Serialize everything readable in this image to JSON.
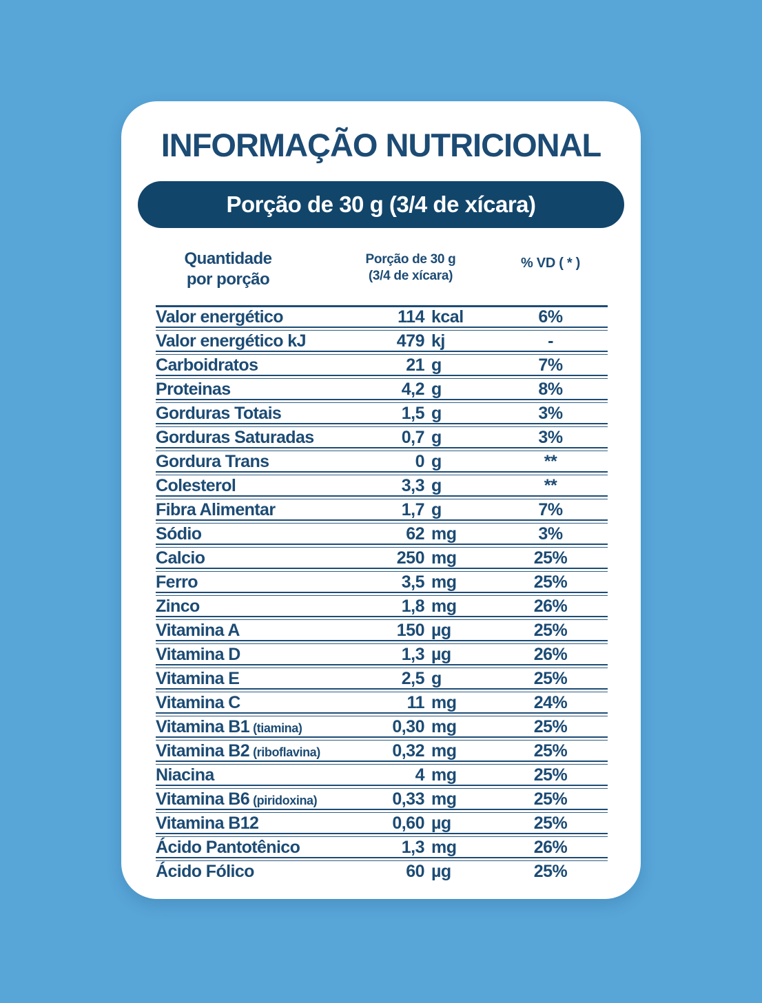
{
  "colors": {
    "background": "#58A5D8",
    "card": "#FFFFFF",
    "navy": "#1C4B74",
    "pill": "#12456A",
    "pill_text": "#FFFFFF"
  },
  "title": "INFORMAÇÃO NUTRICIONAL",
  "serving_banner": "Porção de 30 g (3/4 de xícara)",
  "table": {
    "header": {
      "quantity_line1": "Quantidade",
      "quantity_line2": "por porção",
      "portion_line1": "Porção de 30 g",
      "portion_line2": "(3/4 de xícara)",
      "dv": "% VD ( * )"
    },
    "rows": [
      {
        "label": "Valor energético",
        "sub": "",
        "amount": "114",
        "unit": "kcal",
        "dv": "6%"
      },
      {
        "label": "Valor energético kJ",
        "sub": "",
        "amount": "479",
        "unit": "kj",
        "dv": "-"
      },
      {
        "label": "Carboidratos",
        "sub": "",
        "amount": "21",
        "unit": "g",
        "dv": "7%"
      },
      {
        "label": "Proteinas",
        "sub": "",
        "amount": "4,2",
        "unit": "g",
        "dv": "8%"
      },
      {
        "label": "Gorduras Totais",
        "sub": "",
        "amount": "1,5",
        "unit": "g",
        "dv": "3%"
      },
      {
        "label": "Gorduras Saturadas",
        "sub": "",
        "amount": "0,7",
        "unit": "g",
        "dv": "3%"
      },
      {
        "label": "Gordura Trans",
        "sub": "",
        "amount": "0",
        "unit": "g",
        "dv": "**"
      },
      {
        "label": "Colesterol",
        "sub": "",
        "amount": "3,3",
        "unit": "g",
        "dv": "**"
      },
      {
        "label": "Fibra Alimentar",
        "sub": "",
        "amount": "1,7",
        "unit": "g",
        "dv": "7%"
      },
      {
        "label": "Sódio",
        "sub": "",
        "amount": "62",
        "unit": "mg",
        "dv": "3%"
      },
      {
        "label": "Calcio",
        "sub": "",
        "amount": "250",
        "unit": "mg",
        "dv": "25%"
      },
      {
        "label": "Ferro",
        "sub": "",
        "amount": "3,5",
        "unit": "mg",
        "dv": "25%"
      },
      {
        "label": "Zinco",
        "sub": "",
        "amount": "1,8",
        "unit": "mg",
        "dv": "26%"
      },
      {
        "label": "Vitamina A",
        "sub": "",
        "amount": "150",
        "unit": "µg",
        "dv": "25%"
      },
      {
        "label": "Vitamina D",
        "sub": "",
        "amount": "1,3",
        "unit": "µg",
        "dv": "26%"
      },
      {
        "label": "Vitamina E",
        "sub": "",
        "amount": "2,5",
        "unit": "g",
        "dv": "25%"
      },
      {
        "label": "Vitamina C",
        "sub": "",
        "amount": "11",
        "unit": "mg",
        "dv": "24%"
      },
      {
        "label": "Vitamina B1",
        "sub": "(tiamina)",
        "amount": "0,30",
        "unit": "mg",
        "dv": "25%"
      },
      {
        "label": "Vitamina B2",
        "sub": "(riboflavina)",
        "amount": "0,32",
        "unit": "mg",
        "dv": "25%"
      },
      {
        "label": "Niacina",
        "sub": "",
        "amount": "4",
        "unit": "mg",
        "dv": "25%"
      },
      {
        "label": "Vitamina B6",
        "sub": "(piridoxina)",
        "amount": "0,33",
        "unit": "mg",
        "dv": "25%"
      },
      {
        "label": "Vitamina B12",
        "sub": "",
        "amount": "0,60",
        "unit": "µg",
        "dv": "25%"
      },
      {
        "label": "Ácido Pantotênico",
        "sub": "",
        "amount": "1,3",
        "unit": "mg",
        "dv": "26%"
      },
      {
        "label": "Ácido Fólico",
        "sub": "",
        "amount": "60",
        "unit": "µg",
        "dv": "25%"
      }
    ]
  }
}
